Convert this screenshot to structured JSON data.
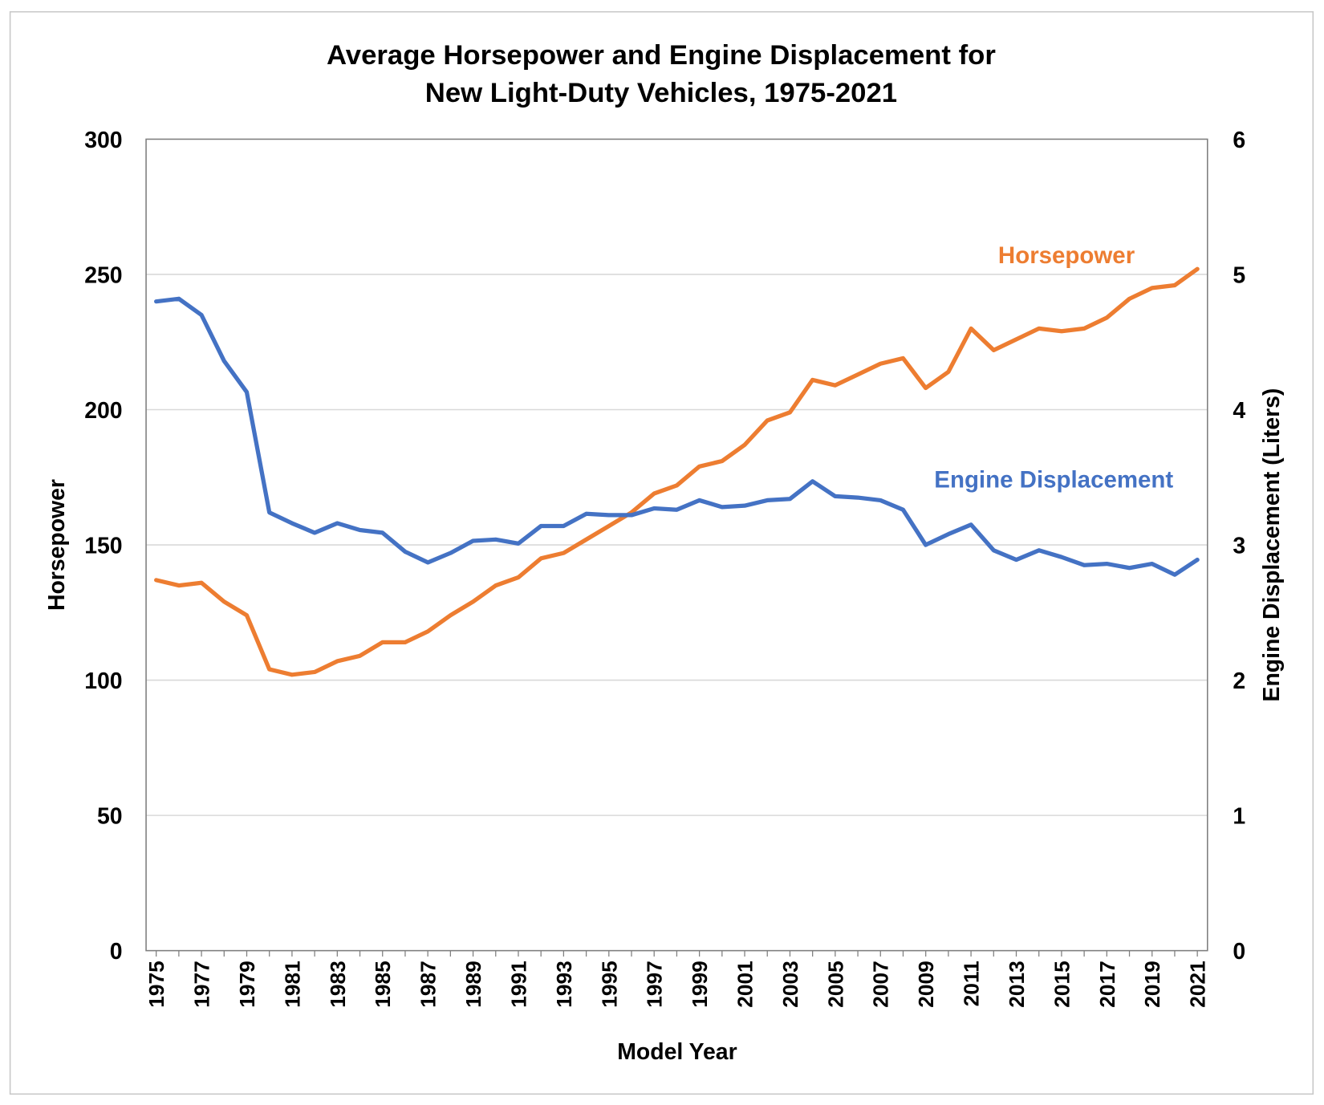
{
  "chart_data": {
    "type": "line",
    "title": [
      "Average Horsepower and Engine Displacement for",
      "New Light-Duty Vehicles, 1975-2021"
    ],
    "xlabel": "Model Year",
    "ylabel": "Horsepower",
    "y2label": "Engine Displacement (Liters)",
    "xlim": [
      1975,
      2021
    ],
    "ylim": [
      0,
      300
    ],
    "y2lim": [
      0,
      6
    ],
    "yticks": [
      0,
      50,
      100,
      150,
      200,
      250,
      300
    ],
    "y2ticks": [
      0,
      1,
      2,
      3,
      4,
      5,
      6
    ],
    "xtick_labels": [
      "1975",
      "1977",
      "1979",
      "1981",
      "1983",
      "1985",
      "1987",
      "1989",
      "1991",
      "1993",
      "1995",
      "1997",
      "1999",
      "2001",
      "2003",
      "2005",
      "2007",
      "2009",
      "2011",
      "2013",
      "2015",
      "2017",
      "2019",
      "2021"
    ],
    "grid": "horizontal",
    "x": [
      1975,
      1976,
      1977,
      1978,
      1979,
      1980,
      1981,
      1982,
      1983,
      1984,
      1985,
      1986,
      1987,
      1988,
      1989,
      1990,
      1991,
      1992,
      1993,
      1994,
      1995,
      1996,
      1997,
      1998,
      1999,
      2000,
      2001,
      2002,
      2003,
      2004,
      2005,
      2006,
      2007,
      2008,
      2009,
      2010,
      2011,
      2012,
      2013,
      2014,
      2015,
      2016,
      2017,
      2018,
      2019,
      2020,
      2021
    ],
    "series": [
      {
        "name": "Horsepower",
        "axis": "left",
        "color": "#ED7D31",
        "values": [
          137,
          135,
          136,
          129,
          124,
          104,
          102,
          103,
          107,
          109,
          114,
          114,
          118,
          124,
          129,
          135,
          138,
          145,
          147,
          152,
          157,
          162,
          169,
          172,
          179,
          181,
          187,
          196,
          199,
          211,
          209,
          213,
          217,
          219,
          208,
          214,
          230,
          222,
          226,
          230,
          229,
          230,
          234,
          241,
          245,
          246,
          252
        ]
      },
      {
        "name": "Engine Displacement",
        "axis": "right",
        "color": "#4472C4",
        "values": [
          4.8,
          4.82,
          4.7,
          4.36,
          4.13,
          3.24,
          3.16,
          3.09,
          3.16,
          3.11,
          3.09,
          2.95,
          2.87,
          2.94,
          3.03,
          3.04,
          3.01,
          3.14,
          3.14,
          3.23,
          3.22,
          3.22,
          3.27,
          3.26,
          3.33,
          3.28,
          3.29,
          3.33,
          3.34,
          3.47,
          3.36,
          3.35,
          3.33,
          3.26,
          3.0,
          3.08,
          3.15,
          2.96,
          2.89,
          2.96,
          2.91,
          2.85,
          2.86,
          2.83,
          2.86,
          2.78,
          2.89
        ]
      }
    ]
  }
}
